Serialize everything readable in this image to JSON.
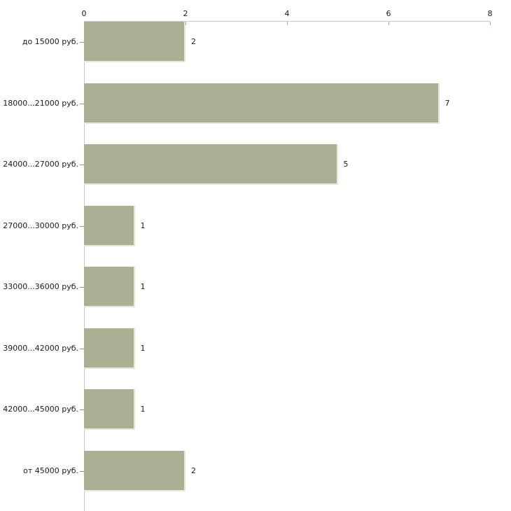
{
  "chart_data": {
    "type": "bar",
    "orientation": "horizontal",
    "title": "",
    "xlabel": "",
    "ylabel": "",
    "categories": [
      "до 15000 руб.",
      "18000...21000 руб.",
      "24000...27000 руб.",
      "27000...30000 руб.",
      "33000...36000 руб.",
      "39000...42000 руб.",
      "42000...45000 руб.",
      "от 45000 руб."
    ],
    "values": [
      2,
      7,
      5,
      1,
      1,
      1,
      1,
      2
    ],
    "data_labels": [
      "2",
      "7",
      "5",
      "1",
      "1",
      "1",
      "1",
      "2"
    ],
    "x_ticks": [
      "0",
      "2",
      "4",
      "6",
      "8"
    ],
    "x_tick_values": [
      0,
      2,
      4,
      6,
      8
    ],
    "xlim": [
      0,
      8
    ],
    "axis_position": "top",
    "grid": false,
    "legend": false,
    "bar_color": "#abb094",
    "bar_edge_color": "#e7e8dd",
    "axis_line_color": "#c9c9c9",
    "tick_mark_color": "#b3b08d",
    "text_color": "#1a1a1a"
  }
}
